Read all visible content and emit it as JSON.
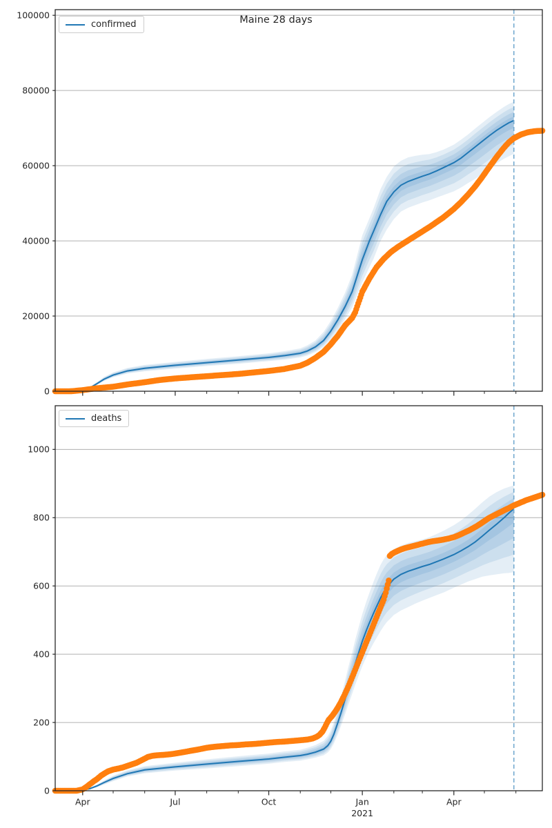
{
  "title": "Maine 28 days",
  "chart_data": [
    {
      "type": "line",
      "name": "confirmed",
      "legend": "confirmed",
      "legend_position": "upper left",
      "x_unit": "days since 2020-03-01",
      "xlim": [
        4,
        483
      ],
      "ylim": [
        0,
        101500
      ],
      "grid": "horizontal",
      "x_labels": false,
      "forecast_end_day": 455,
      "yticks": [
        {
          "v": 0,
          "label": "0"
        },
        {
          "v": 20000,
          "label": "20000"
        },
        {
          "v": 40000,
          "label": "40000"
        },
        {
          "v": 60000,
          "label": "60000"
        },
        {
          "v": 80000,
          "label": "80000"
        },
        {
          "v": 100000,
          "label": "100000"
        }
      ],
      "xticks_major": [
        {
          "v": 31,
          "label": "Apr"
        },
        {
          "v": 122,
          "label": "Jul"
        },
        {
          "v": 214,
          "label": "Oct"
        },
        {
          "v": 306,
          "label": "Jan"
        },
        {
          "v": 396,
          "label": "Apr"
        }
      ],
      "xticks_minor": [
        61,
        92,
        153,
        184,
        245,
        275,
        337,
        365,
        426,
        457
      ],
      "colors": {
        "model": "#1f77b4",
        "actual": "#ff7f0e",
        "vline": "#74aacf",
        "grid": "#b0b0b0",
        "spine": "#262626"
      },
      "band_levels": [
        1,
        0.72,
        0.46,
        0.22
      ],
      "band_opacity": 0.12,
      "model_rows_format": [
        "day",
        "y",
        "lo",
        "hi"
      ],
      "model": [
        [
          4,
          0,
          0,
          0
        ],
        [
          31,
          250,
          180,
          330
        ],
        [
          38,
          900,
          700,
          1100
        ],
        [
          45,
          2000,
          1650,
          2400
        ],
        [
          52,
          3200,
          2700,
          3800
        ],
        [
          61,
          4300,
          3700,
          5000
        ],
        [
          75,
          5400,
          4700,
          6200
        ],
        [
          92,
          6100,
          5300,
          7000
        ],
        [
          122,
          6900,
          6000,
          7800
        ],
        [
          153,
          7600,
          6700,
          8600
        ],
        [
          184,
          8300,
          7300,
          9300
        ],
        [
          214,
          9000,
          8000,
          10100
        ],
        [
          230,
          9500,
          8400,
          10700
        ],
        [
          245,
          10100,
          9000,
          11400
        ],
        [
          252,
          10700,
          9500,
          12200
        ],
        [
          260,
          11800,
          10400,
          13500
        ],
        [
          268,
          13500,
          11800,
          15800
        ],
        [
          275,
          16000,
          13800,
          18700
        ],
        [
          282,
          19000,
          16200,
          22200
        ],
        [
          289,
          22500,
          19200,
          26200
        ],
        [
          296,
          26500,
          22300,
          31000
        ],
        [
          306,
          35000,
          29000,
          41500
        ],
        [
          313,
          40000,
          33000,
          46000
        ],
        [
          317,
          42500,
          35200,
          48600
        ],
        [
          324,
          47000,
          40000,
          53800
        ],
        [
          330,
          50500,
          43000,
          57000
        ],
        [
          337,
          53000,
          45800,
          59800
        ],
        [
          344,
          54800,
          47800,
          61300
        ],
        [
          351,
          55800,
          48800,
          62200
        ],
        [
          358,
          56500,
          49500,
          62600
        ],
        [
          365,
          57200,
          50200,
          62900
        ],
        [
          372,
          57800,
          50800,
          63100
        ],
        [
          379,
          58600,
          51500,
          63600
        ],
        [
          386,
          59500,
          52200,
          64300
        ],
        [
          396,
          60800,
          53200,
          65600
        ],
        [
          403,
          62000,
          54200,
          66900
        ],
        [
          410,
          63500,
          55400,
          68300
        ],
        [
          417,
          65000,
          56500,
          69900
        ],
        [
          424,
          66500,
          57800,
          71400
        ],
        [
          431,
          68000,
          59200,
          72900
        ],
        [
          438,
          69400,
          60600,
          74300
        ],
        [
          445,
          70600,
          61800,
          75600
        ],
        [
          450,
          71400,
          62500,
          76400
        ],
        [
          455,
          72000,
          63200,
          77000
        ]
      ],
      "actual_points_format": [
        "day",
        "y"
      ],
      "actual": [
        [
          4,
          0
        ],
        [
          20,
          10
        ],
        [
          31,
          300
        ],
        [
          45,
          800
        ],
        [
          61,
          1200
        ],
        [
          75,
          1800
        ],
        [
          92,
          2400
        ],
        [
          107,
          3000
        ],
        [
          122,
          3400
        ],
        [
          137,
          3700
        ],
        [
          153,
          4000
        ],
        [
          168,
          4300
        ],
        [
          184,
          4600
        ],
        [
          199,
          5000
        ],
        [
          214,
          5400
        ],
        [
          229,
          5900
        ],
        [
          245,
          6800
        ],
        [
          252,
          7600
        ],
        [
          260,
          8900
        ],
        [
          268,
          10500
        ],
        [
          275,
          12500
        ],
        [
          282,
          14800
        ],
        [
          289,
          17500
        ],
        [
          296,
          19500
        ],
        [
          299,
          21000
        ],
        [
          306,
          26500
        ],
        [
          313,
          30000
        ],
        [
          320,
          33000
        ],
        [
          327,
          35200
        ],
        [
          334,
          37000
        ],
        [
          341,
          38400
        ],
        [
          348,
          39600
        ],
        [
          355,
          40800
        ],
        [
          365,
          42500
        ],
        [
          372,
          43700
        ],
        [
          379,
          45000
        ],
        [
          386,
          46300
        ],
        [
          396,
          48500
        ],
        [
          403,
          50300
        ],
        [
          410,
          52300
        ],
        [
          417,
          54500
        ],
        [
          424,
          57000
        ],
        [
          431,
          59700
        ],
        [
          438,
          62300
        ],
        [
          445,
          64700
        ],
        [
          450,
          66200
        ],
        [
          455,
          67300
        ],
        [
          462,
          68300
        ],
        [
          469,
          68900
        ],
        [
          476,
          69200
        ],
        [
          483,
          69300
        ]
      ]
    },
    {
      "type": "line",
      "name": "deaths",
      "legend": "deaths",
      "legend_position": "upper left",
      "x_unit": "days since 2020-03-01",
      "xlim": [
        4,
        483
      ],
      "ylim": [
        0,
        1128
      ],
      "grid": "horizontal",
      "x_labels": true,
      "forecast_end_day": 455,
      "year_tick": {
        "v": 306,
        "label": "2021"
      },
      "yticks": [
        {
          "v": 0,
          "label": "0"
        },
        {
          "v": 200,
          "label": "200"
        },
        {
          "v": 400,
          "label": "400"
        },
        {
          "v": 600,
          "label": "600"
        },
        {
          "v": 800,
          "label": "800"
        },
        {
          "v": 1000,
          "label": "1000"
        }
      ],
      "xticks_major": [
        {
          "v": 31,
          "label": "Apr"
        },
        {
          "v": 122,
          "label": "Jul"
        },
        {
          "v": 214,
          "label": "Oct"
        },
        {
          "v": 306,
          "label": "Jan"
        },
        {
          "v": 396,
          "label": "Apr"
        }
      ],
      "xticks_minor": [
        61,
        92,
        153,
        184,
        245,
        275,
        337,
        365,
        426,
        457
      ],
      "colors": {
        "model": "#1f77b4",
        "actual": "#ff7f0e",
        "vline": "#74aacf",
        "grid": "#b0b0b0",
        "spine": "#262626"
      },
      "band_levels": [
        1,
        0.72,
        0.46,
        0.22
      ],
      "band_opacity": 0.12,
      "model_rows_format": [
        "day",
        "y",
        "lo",
        "hi"
      ],
      "model": [
        [
          4,
          0,
          0,
          0
        ],
        [
          31,
          2,
          1,
          3
        ],
        [
          38,
          6,
          4,
          9
        ],
        [
          45,
          14,
          10,
          18
        ],
        [
          52,
          24,
          18,
          30
        ],
        [
          61,
          36,
          28,
          44
        ],
        [
          75,
          50,
          42,
          60
        ],
        [
          92,
          61,
          51,
          72
        ],
        [
          122,
          70,
          59,
          82
        ],
        [
          153,
          78,
          65,
          92
        ],
        [
          184,
          86,
          72,
          101
        ],
        [
          214,
          93,
          79,
          109
        ],
        [
          229,
          98,
          84,
          115
        ],
        [
          245,
          103,
          88,
          120
        ],
        [
          252,
          107,
          92,
          126
        ],
        [
          260,
          113,
          97,
          134
        ],
        [
          268,
          122,
          104,
          146
        ],
        [
          272,
          132,
          112,
          160
        ],
        [
          275,
          145,
          122,
          176
        ],
        [
          278,
          165,
          138,
          200
        ],
        [
          282,
          200,
          166,
          242
        ],
        [
          285,
          228,
          190,
          275
        ],
        [
          289,
          268,
          224,
          322
        ],
        [
          292,
          300,
          250,
          360
        ],
        [
          296,
          340,
          284,
          405
        ],
        [
          299,
          372,
          310,
          442
        ],
        [
          303,
          410,
          342,
          486
        ],
        [
          306,
          438,
          365,
          518
        ],
        [
          310,
          470,
          392,
          555
        ],
        [
          313,
          492,
          410,
          580
        ],
        [
          317,
          520,
          432,
          612
        ],
        [
          320,
          540,
          448,
          635
        ],
        [
          324,
          565,
          468,
          662
        ],
        [
          327,
          582,
          482,
          678
        ],
        [
          330,
          596,
          494,
          690
        ],
        [
          334,
          610,
          506,
          700
        ],
        [
          337,
          620,
          515,
          708
        ],
        [
          344,
          634,
          528,
          718
        ],
        [
          351,
          643,
          538,
          726
        ],
        [
          358,
          650,
          548,
          731
        ],
        [
          365,
          657,
          557,
          736
        ],
        [
          372,
          663,
          565,
          743
        ],
        [
          379,
          671,
          573,
          752
        ],
        [
          386,
          679,
          581,
          762
        ],
        [
          396,
          692,
          595,
          778
        ],
        [
          403,
          703,
          604,
          792
        ],
        [
          410,
          715,
          613,
          808
        ],
        [
          417,
          729,
          620,
          826
        ],
        [
          424,
          746,
          627,
          845
        ],
        [
          431,
          764,
          631,
          862
        ],
        [
          438,
          781,
          634,
          875
        ],
        [
          445,
          799,
          637,
          885
        ],
        [
          450,
          813,
          638,
          890
        ],
        [
          455,
          826,
          640,
          895
        ]
      ],
      "actual_points_format": [
        "day",
        "y"
      ],
      "actual": [
        [
          4,
          0
        ],
        [
          25,
          0
        ],
        [
          31,
          4
        ],
        [
          35,
          12
        ],
        [
          38,
          19
        ],
        [
          42,
          28
        ],
        [
          45,
          34
        ],
        [
          49,
          44
        ],
        [
          52,
          50
        ],
        [
          56,
          57
        ],
        [
          61,
          62
        ],
        [
          66,
          65
        ],
        [
          70,
          68
        ],
        [
          75,
          73
        ],
        [
          80,
          78
        ],
        [
          84,
          82
        ],
        [
          88,
          88
        ],
        [
          92,
          94
        ],
        [
          95,
          99
        ],
        [
          99,
          102
        ],
        [
          104,
          104
        ],
        [
          110,
          105
        ],
        [
          117,
          107
        ],
        [
          122,
          109
        ],
        [
          130,
          113
        ],
        [
          137,
          117
        ],
        [
          145,
          121
        ],
        [
          153,
          126
        ],
        [
          161,
          129
        ],
        [
          169,
          131
        ],
        [
          177,
          133
        ],
        [
          184,
          134
        ],
        [
          192,
          136
        ],
        [
          199,
          137
        ],
        [
          207,
          139
        ],
        [
          214,
          141
        ],
        [
          222,
          143
        ],
        [
          229,
          144
        ],
        [
          237,
          146
        ],
        [
          245,
          148
        ],
        [
          252,
          150
        ],
        [
          257,
          153
        ],
        [
          261,
          158
        ],
        [
          264,
          164
        ],
        [
          267,
          174
        ],
        [
          269,
          185
        ],
        [
          271,
          197
        ],
        [
          273,
          208
        ],
        [
          276,
          218
        ],
        [
          279,
          230
        ],
        [
          282,
          244
        ],
        [
          285,
          260
        ],
        [
          288,
          278
        ],
        [
          291,
          297
        ],
        [
          294,
          318
        ],
        [
          297,
          340
        ],
        [
          300,
          362
        ],
        [
          303,
          384
        ],
        [
          306,
          406
        ],
        [
          309,
          428
        ],
        [
          312,
          450
        ],
        [
          315,
          472
        ],
        [
          318,
          494
        ],
        [
          321,
          516
        ],
        [
          324,
          538
        ],
        [
          327,
          560
        ],
        [
          329,
          580
        ],
        [
          330,
          592
        ],
        [
          331,
          604
        ],
        [
          332,
          616
        ],
        [
          333,
          688
        ],
        [
          335,
          694
        ],
        [
          338,
          699
        ],
        [
          341,
          703
        ],
        [
          344,
          707
        ],
        [
          348,
          711
        ],
        [
          352,
          714
        ],
        [
          356,
          717
        ],
        [
          360,
          720
        ],
        [
          365,
          724
        ],
        [
          370,
          728
        ],
        [
          375,
          731
        ],
        [
          380,
          733
        ],
        [
          386,
          736
        ],
        [
          391,
          739
        ],
        [
          396,
          743
        ],
        [
          401,
          749
        ],
        [
          406,
          756
        ],
        [
          411,
          763
        ],
        [
          416,
          771
        ],
        [
          420,
          778
        ],
        [
          424,
          786
        ],
        [
          428,
          794
        ],
        [
          431,
          800
        ],
        [
          435,
          806
        ],
        [
          439,
          812
        ],
        [
          443,
          818
        ],
        [
          447,
          824
        ],
        [
          450,
          828
        ],
        [
          453,
          833
        ],
        [
          455,
          836
        ],
        [
          459,
          841
        ],
        [
          463,
          846
        ],
        [
          467,
          851
        ],
        [
          471,
          855
        ],
        [
          475,
          859
        ],
        [
          479,
          863
        ],
        [
          483,
          867
        ]
      ]
    }
  ]
}
